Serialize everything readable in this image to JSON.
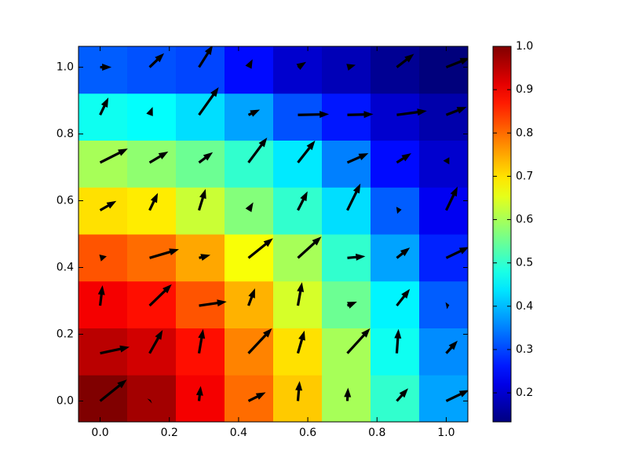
{
  "chart_data": {
    "type": "quiver",
    "colormap": "jet",
    "x": [
      0,
      0.1429,
      0.2857,
      0.4286,
      0.5714,
      0.7143,
      0.8571,
      1
    ],
    "y": [
      0,
      0.1429,
      0.2857,
      0.4286,
      0.5714,
      0.7143,
      0.8571,
      1
    ],
    "values": [
      [
        1.0,
        0.97,
        0.9,
        0.8,
        0.72,
        0.6,
        0.5,
        0.38
      ],
      [
        0.95,
        0.93,
        0.88,
        0.78,
        0.7,
        0.6,
        0.47,
        0.36
      ],
      [
        0.9,
        0.88,
        0.82,
        0.74,
        0.64,
        0.55,
        0.45,
        0.32
      ],
      [
        0.82,
        0.8,
        0.75,
        0.67,
        0.6,
        0.5,
        0.38,
        0.27
      ],
      [
        0.7,
        0.69,
        0.63,
        0.57,
        0.5,
        0.43,
        0.32,
        0.23
      ],
      [
        0.6,
        0.58,
        0.55,
        0.5,
        0.44,
        0.35,
        0.25,
        0.2
      ],
      [
        0.47,
        0.46,
        0.43,
        0.38,
        0.31,
        0.26,
        0.2,
        0.17
      ],
      [
        0.32,
        0.31,
        0.3,
        0.25,
        0.2,
        0.18,
        0.15,
        0.13
      ]
    ],
    "u": [
      [
        0.077,
        0.003,
        0.005,
        0.05,
        0.005,
        0.002,
        0.033,
        0.066
      ],
      [
        0.085,
        0.038,
        0.012,
        0.068,
        0.019,
        0.066,
        0.005,
        0.033
      ],
      [
        0.007,
        0.064,
        0.08,
        0.019,
        0.012,
        0.028,
        0.038,
        0.009
      ],
      [
        0.019,
        0.085,
        0.033,
        0.071,
        0.068,
        0.052,
        0.038,
        0.066
      ],
      [
        0.047,
        0.024,
        0.019,
        0.014,
        0.028,
        0.038,
        0.014,
        0.033
      ],
      [
        0.08,
        0.054,
        0.04,
        0.054,
        0.05,
        0.061,
        0.042,
        0.009
      ],
      [
        0.024,
        0.009,
        0.057,
        0.033,
        0.09,
        0.075,
        0.087,
        0.059
      ],
      [
        0.033,
        0.042,
        0.04,
        0.012,
        0.024,
        0.024,
        0.05,
        0.068
      ]
    ],
    "v": [
      [
        0.064,
        0.003,
        0.045,
        0.026,
        0.06,
        0.04,
        0.038,
        0.033
      ],
      [
        0.019,
        0.07,
        0.073,
        0.075,
        0.068,
        0.075,
        0.073,
        0.038
      ],
      [
        0.061,
        0.064,
        0.012,
        0.052,
        0.07,
        0.012,
        0.05,
        0.002
      ],
      [
        0.005,
        0.026,
        0.009,
        0.059,
        0.064,
        0.005,
        0.031,
        0.033
      ],
      [
        0.028,
        0.052,
        0.064,
        0.024,
        0.057,
        0.08,
        0.002,
        0.071
      ],
      [
        0.042,
        0.033,
        0.031,
        0.075,
        0.066,
        0.028,
        0.028,
        0.016
      ],
      [
        0.052,
        0.024,
        0.083,
        0.016,
        0.002,
        0.002,
        0.012,
        0.024
      ],
      [
        0,
        0.042,
        0.066,
        0.024,
        0.016,
        0.007,
        0.04,
        0.028
      ]
    ],
    "arrow_color": "#000000",
    "xlim": [
      -0.0625,
      1.0625
    ],
    "ylim": [
      -0.0625,
      1.0625
    ],
    "xticks": [
      {
        "value": 0,
        "label": "0.0"
      },
      {
        "value": 0.2,
        "label": "0.2"
      },
      {
        "value": 0.4,
        "label": "0.4"
      },
      {
        "value": 0.6,
        "label": "0.6"
      },
      {
        "value": 0.8,
        "label": "0.8"
      },
      {
        "value": 1,
        "label": "1.0"
      }
    ],
    "yticks": [
      {
        "value": 0,
        "label": "0.0"
      },
      {
        "value": 0.2,
        "label": "0.2"
      },
      {
        "value": 0.4,
        "label": "0.4"
      },
      {
        "value": 0.6,
        "label": "0.6"
      },
      {
        "value": 0.8,
        "label": "0.8"
      },
      {
        "value": 1,
        "label": "1.0"
      }
    ],
    "clim": [
      0.133,
      1.0
    ],
    "colorbar_ticks": [
      {
        "value": 0.2,
        "label": "0.2"
      },
      {
        "value": 0.3,
        "label": "0.3"
      },
      {
        "value": 0.4,
        "label": "0.4"
      },
      {
        "value": 0.5,
        "label": "0.5"
      },
      {
        "value": 0.6,
        "label": "0.6"
      },
      {
        "value": 0.7,
        "label": "0.7"
      },
      {
        "value": 0.8,
        "label": "0.8"
      },
      {
        "value": 0.9,
        "label": "0.9"
      },
      {
        "value": 1,
        "label": "1.0"
      }
    ]
  }
}
